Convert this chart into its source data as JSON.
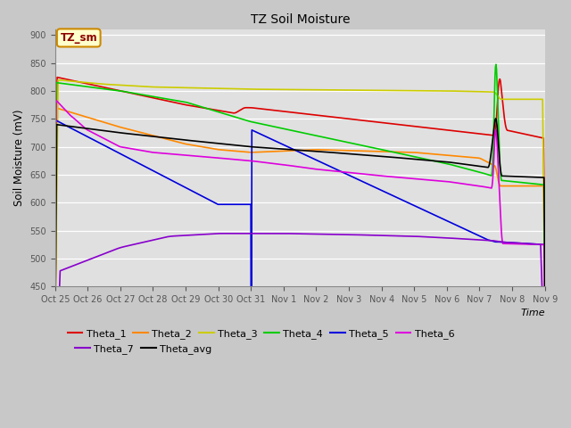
{
  "title": "TZ Soil Moisture",
  "ylabel": "Soil Moisture (mV)",
  "xlabel": "Time",
  "ylim": [
    450,
    910
  ],
  "yticks": [
    450,
    500,
    550,
    600,
    650,
    700,
    750,
    800,
    850,
    900
  ],
  "fig_bg": "#c8c8c8",
  "plot_bg": "#e0e0e0",
  "x_labels": [
    "Oct 25",
    "Oct 26",
    "Oct 27",
    "Oct 28",
    "Oct 29",
    "Oct 30",
    "Oct 31",
    "Nov 1",
    "Nov 2",
    "Nov 3",
    "Nov 4",
    "Nov 5",
    "Nov 6",
    "Nov 7",
    "Nov 8",
    "Nov 9"
  ],
  "legend_row1": [
    "Theta_1",
    "Theta_2",
    "Theta_3",
    "Theta_4",
    "Theta_5",
    "Theta_6"
  ],
  "legend_row2": [
    "Theta_7",
    "Theta_avg"
  ],
  "colors": {
    "Theta_1": "#dd0000",
    "Theta_2": "#ff8800",
    "Theta_3": "#cccc00",
    "Theta_4": "#00cc00",
    "Theta_5": "#0000dd",
    "Theta_6": "#dd00dd",
    "Theta_7": "#8800cc",
    "Theta_avg": "#000000"
  }
}
